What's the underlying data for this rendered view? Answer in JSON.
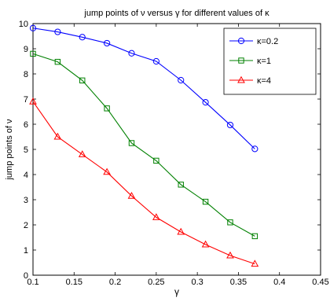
{
  "chart_data": {
    "type": "line",
    "title": "jump points of ν versus γ for different values of κ",
    "xlabel": "γ",
    "ylabel": "jump points of ν",
    "xlim": [
      0.1,
      0.45
    ],
    "ylim": [
      0,
      10
    ],
    "xticks": [
      "0.1",
      "0.15",
      "0.2",
      "0.25",
      "0.3",
      "0.35",
      "0.4",
      "0.45"
    ],
    "yticks": [
      "0",
      "1",
      "2",
      "3",
      "4",
      "5",
      "6",
      "7",
      "8",
      "9",
      "10"
    ],
    "grid": false,
    "legend_position": "top-right",
    "x": [
      0.1,
      0.13,
      0.16,
      0.19,
      0.22,
      0.25,
      0.28,
      0.31,
      0.34,
      0.37
    ],
    "series": [
      {
        "name": "κ=0.2",
        "color": "#0000ff",
        "marker": "circle",
        "values": [
          9.82,
          9.67,
          9.46,
          9.22,
          8.82,
          8.5,
          7.75,
          6.87,
          5.97,
          5.02
        ]
      },
      {
        "name": "κ=1",
        "color": "#008000",
        "marker": "square",
        "values": [
          8.8,
          8.48,
          7.74,
          6.63,
          5.25,
          4.55,
          3.6,
          2.92,
          2.1,
          1.55
        ]
      },
      {
        "name": "κ=4",
        "color": "#ff0000",
        "marker": "triangle",
        "values": [
          6.9,
          5.5,
          4.8,
          4.1,
          3.15,
          2.3,
          1.72,
          1.22,
          0.78,
          0.45
        ]
      }
    ]
  }
}
